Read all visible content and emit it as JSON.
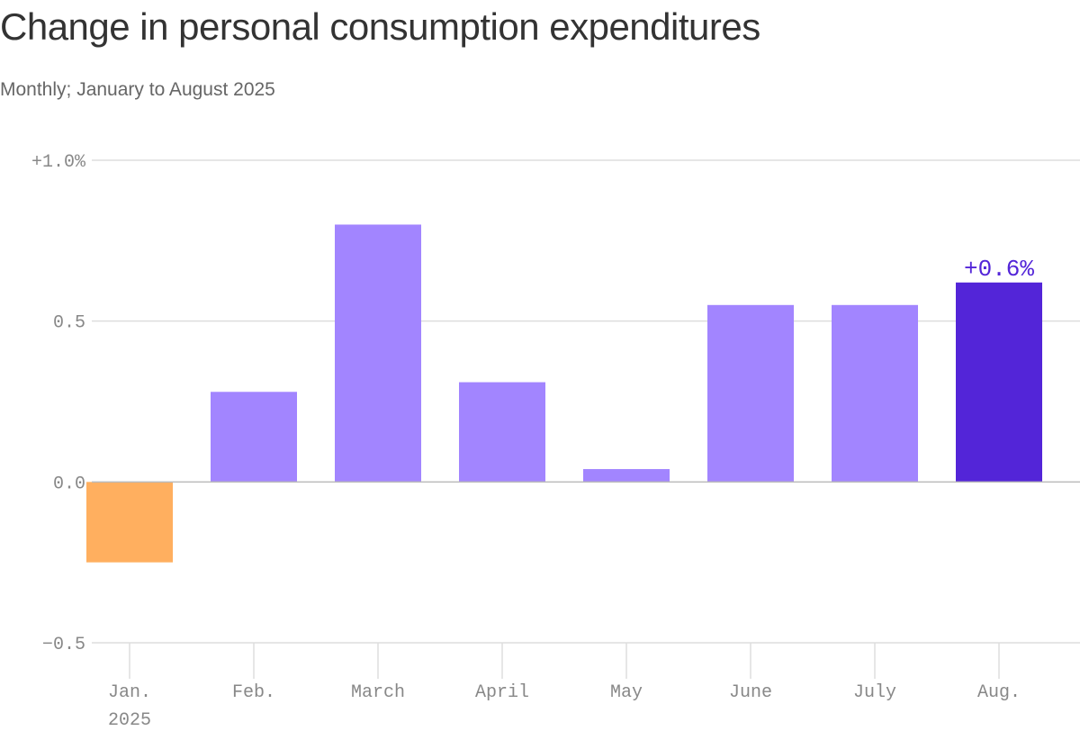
{
  "header": {
    "title": "Change in personal consumption expenditures",
    "subtitle": "Monthly; January to August 2025"
  },
  "colors": {
    "negative": "#FFAF5F",
    "positive": "#A285FF",
    "highlight": "#5325D8",
    "grid": "#DDDDDD",
    "zero_line": "#BBBBBB",
    "tick_text": "#888888"
  },
  "chart_data": {
    "type": "bar",
    "title": "Change in personal consumption expenditures",
    "subtitle": "Monthly; January to August 2025",
    "xlabel": "",
    "ylabel": "",
    "ylim": [
      -0.5,
      1.0
    ],
    "grid": true,
    "y_ticks": [
      {
        "value": 1.0,
        "label": "+1.0%"
      },
      {
        "value": 0.5,
        "label": "0.5"
      },
      {
        "value": 0.0,
        "label": "0.0"
      },
      {
        "value": -0.5,
        "label": "−0.5"
      }
    ],
    "categories": [
      "Jan.",
      "Feb.",
      "March",
      "April",
      "May",
      "June",
      "July",
      "Aug."
    ],
    "category_sublabels": [
      "2025",
      "",
      "",
      "",
      "",
      "",
      "",
      ""
    ],
    "values": [
      -0.25,
      0.28,
      0.8,
      0.31,
      0.04,
      0.55,
      0.55,
      0.62
    ],
    "highlight_index": 7,
    "annotations": [
      {
        "category": "Aug.",
        "label": "+0.6%"
      }
    ]
  }
}
